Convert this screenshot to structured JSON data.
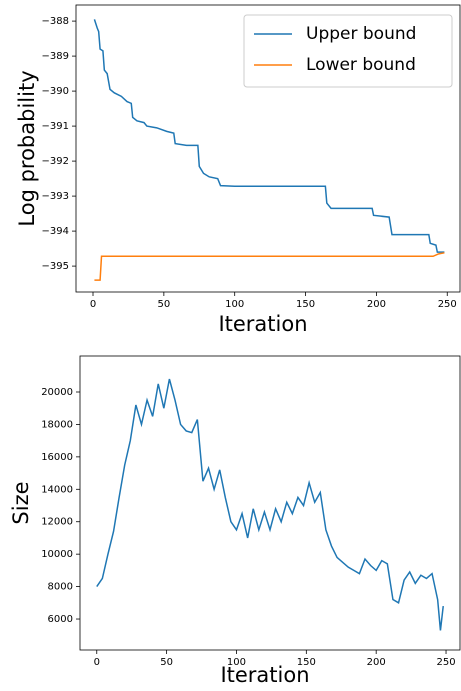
{
  "chart_data": [
    {
      "type": "line",
      "ylabel": "Log probability",
      "xlabel": "Iteration",
      "xlim": [
        -12,
        259
      ],
      "ylim": [
        -395.74,
        -387.54
      ],
      "xticks": [
        0,
        50,
        100,
        150,
        200,
        250
      ],
      "yticks": [
        {
          "value": -395,
          "label": "−395"
        },
        {
          "value": -394,
          "label": "−394"
        },
        {
          "value": -393,
          "label": "−393"
        },
        {
          "value": -392,
          "label": "−392"
        },
        {
          "value": -391,
          "label": "−391"
        },
        {
          "value": -390,
          "label": "−390"
        },
        {
          "value": -389,
          "label": "−389"
        },
        {
          "value": -388,
          "label": "−388"
        }
      ],
      "legend": "upper right",
      "series": [
        {
          "name": "Upper bound",
          "color": "#1f77b4",
          "x": [
            1,
            3,
            4,
            5,
            7,
            8,
            10,
            12,
            15,
            20,
            24,
            27,
            28,
            31,
            36,
            38,
            45,
            52,
            57,
            58,
            66,
            74,
            75,
            78,
            82,
            88,
            90,
            100,
            164,
            165,
            168,
            197,
            198,
            209,
            211,
            237,
            238,
            242,
            243,
            248
          ],
          "values": [
            -387.95,
            -388.2,
            -388.3,
            -388.8,
            -388.85,
            -389.4,
            -389.5,
            -389.95,
            -390.05,
            -390.15,
            -390.3,
            -390.35,
            -390.75,
            -390.85,
            -390.9,
            -391.0,
            -391.05,
            -391.15,
            -391.2,
            -391.5,
            -391.55,
            -391.55,
            -392.15,
            -392.35,
            -392.45,
            -392.5,
            -392.7,
            -392.72,
            -392.72,
            -393.2,
            -393.35,
            -393.35,
            -393.55,
            -393.6,
            -394.1,
            -394.1,
            -394.35,
            -394.4,
            -394.6,
            -394.6
          ]
        },
        {
          "name": "Lower bound",
          "color": "#ff7f0e",
          "x": [
            1,
            5,
            6,
            240,
            244,
            248
          ],
          "values": [
            -395.4,
            -395.4,
            -394.72,
            -394.72,
            -394.65,
            -394.62
          ]
        }
      ]
    },
    {
      "type": "line",
      "ylabel": "Size",
      "xlabel": "Iteration",
      "xlim": [
        -12,
        260
      ],
      "ylim": [
        4090,
        22220
      ],
      "xticks": [
        0,
        50,
        100,
        150,
        200,
        250
      ],
      "yticks": [
        6000,
        8000,
        10000,
        12000,
        14000,
        16000,
        18000,
        20000
      ],
      "series": [
        {
          "color": "#1f77b4",
          "x": [
            0,
            4,
            8,
            12,
            16,
            20,
            24,
            28,
            32,
            36,
            40,
            44,
            48,
            52,
            56,
            60,
            64,
            68,
            72,
            76,
            80,
            84,
            88,
            92,
            96,
            100,
            104,
            108,
            112,
            116,
            120,
            124,
            128,
            132,
            136,
            140,
            144,
            148,
            152,
            156,
            160,
            164,
            168,
            172,
            176,
            180,
            184,
            188,
            192,
            196,
            200,
            204,
            208,
            212,
            216,
            220,
            224,
            228,
            232,
            236,
            240,
            244,
            246,
            248
          ],
          "values": [
            8000,
            8500,
            10000,
            11400,
            13500,
            15500,
            17000,
            19200,
            18000,
            19500,
            18500,
            20500,
            19000,
            20800,
            19500,
            18000,
            17600,
            17500,
            18300,
            14500,
            15300,
            14000,
            15200,
            13500,
            12000,
            11500,
            12500,
            11000,
            12800,
            11500,
            12600,
            11500,
            12800,
            12000,
            13200,
            12500,
            13500,
            13000,
            14400,
            13200,
            13800,
            11500,
            10500,
            9800,
            9500,
            9200,
            9000,
            8800,
            9700,
            9300,
            9000,
            9600,
            9400,
            7200,
            7000,
            8400,
            8900,
            8200,
            8700,
            8500,
            8800,
            7200,
            5300,
            6800
          ]
        }
      ]
    }
  ]
}
